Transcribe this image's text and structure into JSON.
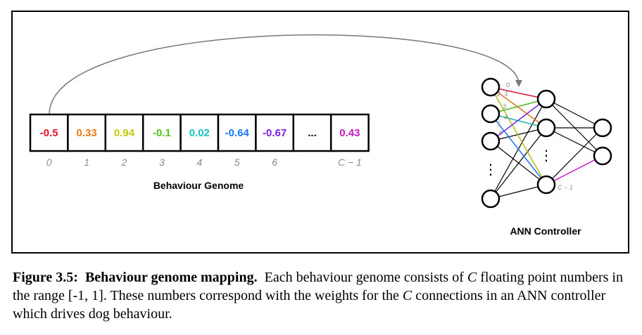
{
  "genome": {
    "title": "Behaviour Genome",
    "cells": [
      {
        "value": "-0.5",
        "color": "#e8112d"
      },
      {
        "value": "0.33",
        "color": "#f07814"
      },
      {
        "value": "0.94",
        "color": "#c8c80a"
      },
      {
        "value": "-0.1",
        "color": "#52c41a"
      },
      {
        "value": "0.02",
        "color": "#16c2c2"
      },
      {
        "value": "-0.64",
        "color": "#1677ff"
      },
      {
        "value": "-0.67",
        "color": "#7a1cf0"
      },
      {
        "value": "...",
        "color": "#000000"
      },
      {
        "value": "0.43",
        "color": "#c416c4"
      }
    ],
    "indices": [
      "0",
      "1",
      "2",
      "3",
      "4",
      "5",
      "6",
      "",
      "C − 1"
    ]
  },
  "ann": {
    "title": "ANN Controller",
    "weight_labels": [
      "0",
      "1",
      "2",
      "3",
      "4",
      "5",
      "6"
    ],
    "last_label": "C − 1",
    "ellipsis": "⋮"
  },
  "caption": {
    "label": "Figure 3.5:",
    "bold_title": "Behaviour genome mapping.",
    "seg1": "Each behaviour genome consists of",
    "var": "C",
    "seg2": "floating point numbers in the range [-1, 1]. These numbers correspond with the weights for the",
    "seg3": "connections in an ANN controller which drives dog behaviour."
  }
}
